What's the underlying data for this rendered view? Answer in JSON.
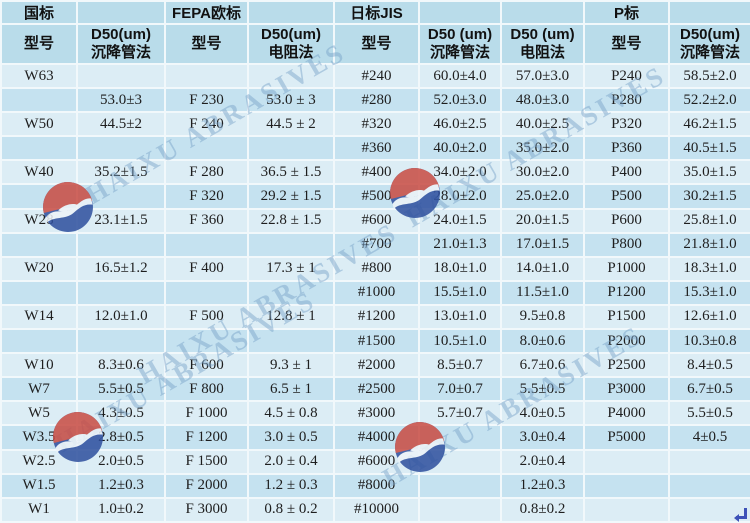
{
  "watermark": {
    "text": "HAIXU ABRASIVES",
    "logo_name": "haixu-globe-logo"
  },
  "colors": {
    "header_bg": "#b9dcea",
    "row_light": "#dcedf5",
    "row_dark": "#c5e2f0",
    "gridline": "#f1f8fb",
    "text": "#1e1e1e",
    "logo_red": "#c94b42",
    "logo_blue": "#2e4f9e",
    "watermark_text": "#7aa4c9",
    "corner_icon_blue": "#3d52b8"
  },
  "table": {
    "group_headers": [
      "国标",
      "",
      "FEPA欧标",
      "",
      "日标JIS",
      "",
      "",
      "P标",
      ""
    ],
    "column_headers": [
      {
        "line1": "型号",
        "line2": ""
      },
      {
        "line1": "D50(um)",
        "line2": "沉降管法"
      },
      {
        "line1": "型号",
        "line2": ""
      },
      {
        "line1": "D50(um)",
        "line2": "电阻法"
      },
      {
        "line1": "型号",
        "line2": ""
      },
      {
        "line1": "D50 (um)",
        "line2": "沉降管法"
      },
      {
        "line1": "D50 (um)",
        "line2": "电阻法"
      },
      {
        "line1": "型号",
        "line2": ""
      },
      {
        "line1": "D50(um)",
        "line2": "沉降管法"
      }
    ],
    "rows": [
      [
        "W63",
        "",
        "",
        "",
        "#240",
        "60.0±4.0",
        "57.0±3.0",
        "P240",
        "58.5±2.0"
      ],
      [
        "",
        "53.0±3",
        "F 230",
        "53.0 ± 3",
        "#280",
        "52.0±3.0",
        "48.0±3.0",
        "P280",
        "52.2±2.0"
      ],
      [
        "W50",
        "44.5±2",
        "F 240",
        "44.5 ± 2",
        "#320",
        "46.0±2.5",
        "40.0±2.5",
        "P320",
        "46.2±1.5"
      ],
      [
        "",
        "",
        "",
        "",
        "#360",
        "40.0±2.0",
        "35.0±2.0",
        "P360",
        "40.5±1.5"
      ],
      [
        "W40",
        "35.2±1.5",
        "F 280",
        "36.5 ± 1.5",
        "#400",
        "34.0±2.0",
        "30.0±2.0",
        "P400",
        "35.0±1.5"
      ],
      [
        "",
        "",
        "F 320",
        "29.2 ± 1.5",
        "#500",
        "28.0±2.0",
        "25.0±2.0",
        "P500",
        "30.2±1.5"
      ],
      [
        "W28",
        "23.1±1.5",
        "F 360",
        "22.8 ± 1.5",
        "#600",
        "24.0±1.5",
        "20.0±1.5",
        "P600",
        "25.8±1.0"
      ],
      [
        "",
        "",
        "",
        "",
        "#700",
        "21.0±1.3",
        "17.0±1.5",
        "P800",
        "21.8±1.0"
      ],
      [
        "W20",
        "16.5±1.2",
        "F 400",
        "17.3 ± 1",
        "#800",
        "18.0±1.0",
        "14.0±1.0",
        "P1000",
        "18.3±1.0"
      ],
      [
        "",
        "",
        "",
        "",
        "#1000",
        "15.5±1.0",
        "11.5±1.0",
        "P1200",
        "15.3±1.0"
      ],
      [
        "W14",
        "12.0±1.0",
        "F 500",
        "12.8 ± 1",
        "#1200",
        "13.0±1.0",
        "9.5±0.8",
        "P1500",
        "12.6±1.0"
      ],
      [
        "",
        "",
        "",
        "",
        "#1500",
        "10.5±1.0",
        "8.0±0.6",
        "P2000",
        "10.3±0.8"
      ],
      [
        "W10",
        "8.3±0.6",
        "F 600",
        "9.3 ± 1",
        "#2000",
        "8.5±0.7",
        "6.7±0.6",
        "P2500",
        "8.4±0.5"
      ],
      [
        "W7",
        "5.5±0.5",
        "F 800",
        "6.5 ± 1",
        "#2500",
        "7.0±0.7",
        "5.5±0.5",
        "P3000",
        "6.7±0.5"
      ],
      [
        "W5",
        "4.3±0.5",
        "F 1000",
        "4.5 ± 0.8",
        "#3000",
        "5.7±0.7",
        "4.0±0.5",
        "P4000",
        "5.5±0.5"
      ],
      [
        "W3.5",
        "2.8±0.5",
        "F 1200",
        "3.0 ± 0.5",
        "#4000",
        "",
        "3.0±0.4",
        "P5000",
        "4±0.5"
      ],
      [
        "W2.5",
        "2.0±0.5",
        "F 1500",
        "2.0 ± 0.4",
        "#6000",
        "",
        "2.0±0.4",
        "",
        ""
      ],
      [
        "W1.5",
        "1.2±0.3",
        "F 2000",
        "1.2 ± 0.3",
        "#8000",
        "",
        "1.2±0.3",
        "",
        ""
      ],
      [
        "W1",
        "1.0±0.2",
        "F 3000",
        "0.8 ± 0.2",
        "#10000",
        "",
        "0.8±0.2",
        "",
        ""
      ]
    ]
  }
}
